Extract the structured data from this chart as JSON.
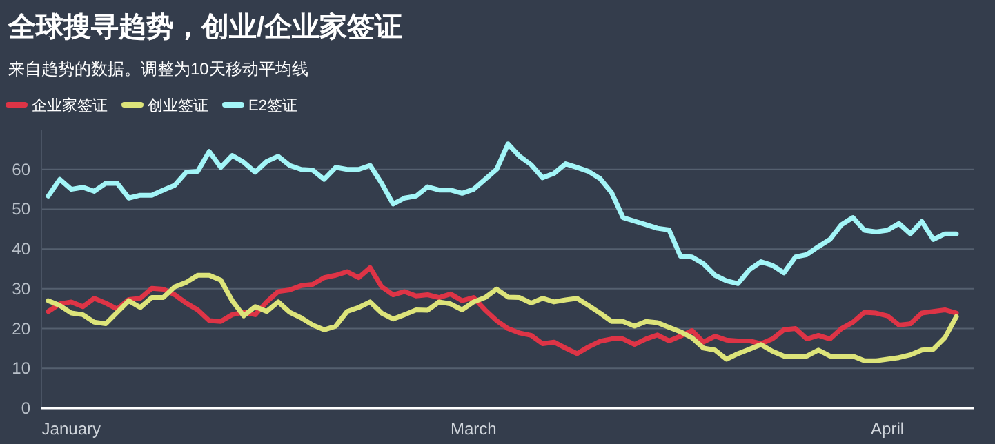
{
  "chart_data": {
    "type": "line",
    "title": "全球搜寻趋势，创业/企业家签证",
    "subtitle": "来自趋势的数据。调整为10天移动平均线",
    "categories": [
      null,
      null,
      "January",
      null,
      null,
      null,
      null,
      null,
      null,
      null,
      null,
      null,
      null,
      null,
      null,
      null,
      null,
      null,
      null,
      null,
      null,
      null,
      null,
      null,
      null,
      null,
      null,
      null,
      null,
      null,
      null,
      null,
      null,
      null,
      null,
      null,
      null,
      "March",
      null,
      null,
      null,
      null,
      null,
      null,
      null,
      null,
      null,
      null,
      null,
      null,
      null,
      null,
      null,
      null,
      null,
      null,
      null,
      null,
      null,
      null,
      null,
      null,
      null,
      null,
      null,
      null,
      null,
      null,
      null,
      null,
      null,
      null,
      null,
      "April",
      null,
      null,
      null,
      null,
      null,
      null
    ],
    "ylim": [
      0,
      70
    ],
    "yticks": [
      0,
      10,
      20,
      30,
      40,
      50,
      60
    ],
    "grid": "y",
    "legend": "top left",
    "marker": "none",
    "line_style": "solid",
    "series": [
      {
        "name": "企业家签证",
        "color": "#de3446",
        "values": [
          24.3,
          26.2,
          26.7,
          25.5,
          27.6,
          26.4,
          24.9,
          27.3,
          27.6,
          30.1,
          29.9,
          28.5,
          26.4,
          24.7,
          22,
          21.8,
          23.5,
          24.1,
          23.5,
          26.7,
          29.3,
          29.7,
          30.8,
          31.1,
          32.8,
          33.4,
          34.3,
          32.8,
          35.3,
          30.5,
          28.5,
          29.3,
          28.2,
          28.5,
          27.8,
          28.7,
          27,
          27.8,
          24.7,
          22,
          20,
          18.9,
          18.3,
          16.2,
          16.6,
          15.1,
          13.7,
          15.4,
          16.8,
          17.4,
          17.4,
          16,
          17.4,
          18.4,
          16.9,
          18.1,
          19.5,
          16.6,
          18.1,
          17.1,
          16.9,
          16.9,
          16.2,
          17.4,
          19.7,
          20,
          17.4,
          18.3,
          17.4,
          20,
          21.6,
          24.1,
          23.9,
          23.2,
          20.9,
          21.2,
          23.9,
          24.3,
          24.7,
          23.9
        ]
      },
      {
        "name": "创业签证",
        "color": "#dde47a",
        "values": [
          27,
          25.8,
          23.9,
          23.5,
          21.6,
          21.2,
          24.1,
          27,
          25.3,
          27.8,
          27.8,
          30.5,
          31.6,
          33.4,
          33.4,
          32.2,
          27,
          23.2,
          25.5,
          24.3,
          26.7,
          24.1,
          22.7,
          20.9,
          19.7,
          20.6,
          24.3,
          25.3,
          26.7,
          23.9,
          22.4,
          23.5,
          24.7,
          24.6,
          26.7,
          26.2,
          24.7,
          26.7,
          27.8,
          29.9,
          27.9,
          27.8,
          26.4,
          27.6,
          26.7,
          27.2,
          27.6,
          25.8,
          23.9,
          21.8,
          21.8,
          20.6,
          21.8,
          21.5,
          20.3,
          19.2,
          17.7,
          15.1,
          14.6,
          12.3,
          13.7,
          14.8,
          16,
          14.3,
          13.1,
          13.1,
          13.1,
          14.6,
          13.1,
          13.1,
          13.1,
          11.9,
          11.9,
          12.3,
          12.7,
          13.4,
          14.6,
          14.8,
          17.7,
          23
        ]
      },
      {
        "name": "E2签证",
        "color": "#a3f5f7",
        "values": [
          53.3,
          57.5,
          55,
          55.5,
          54.5,
          56.5,
          56.5,
          52.8,
          53.5,
          53.5,
          54.8,
          56,
          59.3,
          59.5,
          64.5,
          60.5,
          63.5,
          61.8,
          59.3,
          62,
          63.3,
          61,
          60,
          59.8,
          57.5,
          60.5,
          60,
          60,
          61,
          56.5,
          51.3,
          52.8,
          53.3,
          55.6,
          54.8,
          54.8,
          54,
          55,
          57.5,
          60,
          66.4,
          63.3,
          61.2,
          57.9,
          59,
          61.4,
          60.5,
          59.5,
          57.7,
          54.2,
          47.9,
          47,
          46.1,
          45.2,
          44.8,
          38.2,
          38,
          36.3,
          33.4,
          32,
          31.3,
          34.8,
          36.8,
          35.9,
          34,
          38,
          38.6,
          40.6,
          42.4,
          46.1,
          47.9,
          44.7,
          44.3,
          44.7,
          46.4,
          43.8,
          46.9,
          42.4,
          43.8,
          43.8
        ]
      }
    ]
  }
}
